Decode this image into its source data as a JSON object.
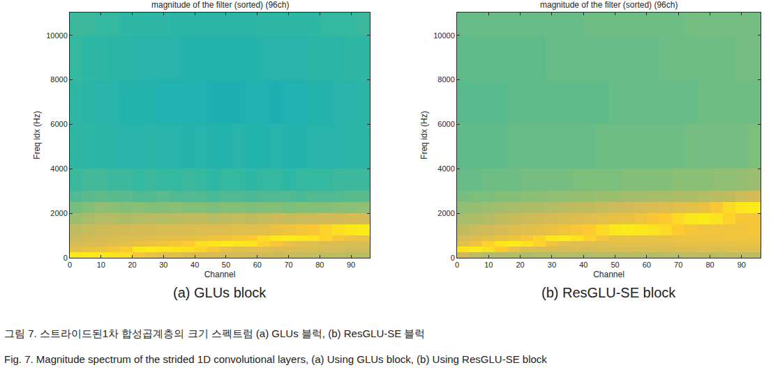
{
  "chart_data": [
    {
      "type": "heatmap",
      "title": "magnitude of the filter (sorted) (96ch)",
      "x_label": "Channel",
      "y_label": "Freq idx (Hz)",
      "annotations": [
        "(a) GLUs block"
      ],
      "xlim": [
        0,
        96
      ],
      "ylim": [
        0,
        11025
      ],
      "xticks": [
        0,
        10,
        20,
        30,
        40,
        50,
        60,
        70,
        80,
        90
      ],
      "yticks": [
        0,
        2000,
        4000,
        6000,
        8000,
        10000
      ],
      "zlim": [
        0,
        1
      ],
      "x": [
        0,
        4,
        8,
        12,
        16,
        20,
        24,
        28,
        32,
        36,
        40,
        44,
        48,
        52,
        56,
        60,
        64,
        68,
        72,
        76,
        80,
        84,
        88,
        92,
        96
      ],
      "y": [
        0,
        250,
        500,
        750,
        1000,
        1500,
        2000,
        2500,
        3000,
        4000,
        6000,
        8000,
        10000,
        11025
      ],
      "cells": [
        [
          0.95,
          0.96,
          0.95,
          0.94,
          0.93,
          0.85,
          0.82,
          0.8,
          0.8,
          0.78,
          0.78,
          0.77,
          0.76,
          0.76,
          0.75,
          0.75,
          0.74,
          0.74,
          0.73,
          0.73,
          0.72,
          0.72,
          0.71,
          0.71
        ],
        [
          0.8,
          0.82,
          0.83,
          0.85,
          0.88,
          0.95,
          0.96,
          0.95,
          0.94,
          0.93,
          0.9,
          0.86,
          0.82,
          0.8,
          0.8,
          0.79,
          0.78,
          0.78,
          0.77,
          0.77,
          0.76,
          0.76,
          0.75,
          0.75
        ],
        [
          0.76,
          0.77,
          0.78,
          0.79,
          0.8,
          0.82,
          0.83,
          0.84,
          0.86,
          0.88,
          0.93,
          0.95,
          0.96,
          0.95,
          0.94,
          0.9,
          0.86,
          0.82,
          0.8,
          0.79,
          0.78,
          0.78,
          0.77,
          0.77
        ],
        [
          0.74,
          0.75,
          0.76,
          0.77,
          0.78,
          0.78,
          0.79,
          0.8,
          0.8,
          0.81,
          0.82,
          0.83,
          0.84,
          0.86,
          0.88,
          0.92,
          0.95,
          0.96,
          0.95,
          0.94,
          0.9,
          0.86,
          0.83,
          0.82
        ],
        [
          0.72,
          0.73,
          0.74,
          0.75,
          0.75,
          0.76,
          0.76,
          0.77,
          0.77,
          0.77,
          0.78,
          0.78,
          0.78,
          0.79,
          0.79,
          0.8,
          0.82,
          0.83,
          0.85,
          0.87,
          0.9,
          0.93,
          0.95,
          0.96
        ],
        [
          0.66,
          0.68,
          0.7,
          0.7,
          0.69,
          0.7,
          0.71,
          0.7,
          0.71,
          0.72,
          0.72,
          0.71,
          0.72,
          0.73,
          0.72,
          0.73,
          0.74,
          0.73,
          0.74,
          0.74,
          0.75,
          0.75,
          0.76,
          0.76
        ],
        [
          0.6,
          0.62,
          0.64,
          0.63,
          0.62,
          0.63,
          0.62,
          0.62,
          0.63,
          0.62,
          0.62,
          0.61,
          0.62,
          0.62,
          0.61,
          0.62,
          0.62,
          0.61,
          0.62,
          0.62,
          0.62,
          0.63,
          0.63,
          0.64
        ],
        [
          0.55,
          0.56,
          0.57,
          0.56,
          0.56,
          0.55,
          0.55,
          0.56,
          0.55,
          0.55,
          0.55,
          0.54,
          0.55,
          0.55,
          0.54,
          0.55,
          0.55,
          0.55,
          0.54,
          0.55,
          0.55,
          0.55,
          0.56,
          0.56
        ],
        [
          0.52,
          0.53,
          0.53,
          0.52,
          0.52,
          0.51,
          0.52,
          0.51,
          0.51,
          0.52,
          0.51,
          0.5,
          0.51,
          0.51,
          0.5,
          0.51,
          0.51,
          0.5,
          0.51,
          0.51,
          0.51,
          0.52,
          0.52,
          0.52
        ],
        [
          0.5,
          0.5,
          0.49,
          0.49,
          0.48,
          0.48,
          0.49,
          0.48,
          0.48,
          0.47,
          0.48,
          0.47,
          0.47,
          0.48,
          0.47,
          0.47,
          0.48,
          0.47,
          0.47,
          0.48,
          0.48,
          0.48,
          0.49,
          0.49
        ],
        [
          0.5,
          0.49,
          0.48,
          0.48,
          0.47,
          0.47,
          0.47,
          0.46,
          0.46,
          0.46,
          0.46,
          0.45,
          0.45,
          0.45,
          0.46,
          0.46,
          0.45,
          0.46,
          0.46,
          0.47,
          0.47,
          0.48,
          0.48,
          0.49
        ],
        [
          0.51,
          0.5,
          0.5,
          0.49,
          0.49,
          0.48,
          0.48,
          0.48,
          0.48,
          0.47,
          0.47,
          0.47,
          0.47,
          0.47,
          0.47,
          0.48,
          0.48,
          0.48,
          0.48,
          0.49,
          0.49,
          0.49,
          0.5,
          0.5
        ],
        [
          0.52,
          0.52,
          0.51,
          0.51,
          0.5,
          0.5,
          0.5,
          0.5,
          0.49,
          0.49,
          0.49,
          0.49,
          0.49,
          0.49,
          0.49,
          0.5,
          0.5,
          0.5,
          0.5,
          0.5,
          0.51,
          0.51,
          0.51,
          0.52
        ]
      ]
    },
    {
      "type": "heatmap",
      "title": "magnitude of the filter (sorted) (96ch)",
      "x_label": "Channel",
      "y_label": "Freq idx (Hz)",
      "annotations": [
        "(b) ResGLU-SE block"
      ],
      "xlim": [
        0,
        96
      ],
      "ylim": [
        0,
        11025
      ],
      "xticks": [
        0,
        10,
        20,
        30,
        40,
        50,
        60,
        70,
        80,
        90
      ],
      "yticks": [
        0,
        2000,
        4000,
        6000,
        8000,
        10000
      ],
      "zlim": [
        0,
        1
      ],
      "x": [
        0,
        4,
        8,
        12,
        16,
        20,
        24,
        28,
        32,
        36,
        40,
        44,
        48,
        52,
        56,
        60,
        64,
        68,
        72,
        76,
        80,
        84,
        88,
        92,
        96
      ],
      "y": [
        0,
        250,
        500,
        750,
        1000,
        1500,
        2000,
        2500,
        3000,
        4000,
        6000,
        8000,
        10000,
        11025
      ],
      "cells": [
        [
          0.75,
          0.72,
          0.7,
          0.7,
          0.7,
          0.69,
          0.7,
          0.7,
          0.71,
          0.7,
          0.7,
          0.71,
          0.7,
          0.71,
          0.71,
          0.7,
          0.71,
          0.71,
          0.72,
          0.72,
          0.71,
          0.72,
          0.72,
          0.72
        ],
        [
          0.95,
          0.96,
          0.93,
          0.88,
          0.82,
          0.78,
          0.77,
          0.77,
          0.76,
          0.77,
          0.76,
          0.77,
          0.77,
          0.77,
          0.77,
          0.78,
          0.78,
          0.78,
          0.78,
          0.79,
          0.78,
          0.79,
          0.79,
          0.79
        ],
        [
          0.8,
          0.84,
          0.9,
          0.95,
          0.96,
          0.94,
          0.9,
          0.84,
          0.8,
          0.79,
          0.79,
          0.79,
          0.8,
          0.8,
          0.8,
          0.8,
          0.8,
          0.81,
          0.81,
          0.81,
          0.81,
          0.81,
          0.82,
          0.82
        ],
        [
          0.76,
          0.78,
          0.8,
          0.82,
          0.84,
          0.86,
          0.9,
          0.95,
          0.96,
          0.94,
          0.9,
          0.85,
          0.82,
          0.82,
          0.82,
          0.82,
          0.82,
          0.83,
          0.83,
          0.83,
          0.83,
          0.84,
          0.84,
          0.84
        ],
        [
          0.72,
          0.74,
          0.75,
          0.76,
          0.78,
          0.79,
          0.8,
          0.82,
          0.84,
          0.86,
          0.88,
          0.92,
          0.95,
          0.96,
          0.95,
          0.94,
          0.92,
          0.88,
          0.85,
          0.84,
          0.84,
          0.84,
          0.84,
          0.85
        ],
        [
          0.68,
          0.69,
          0.7,
          0.72,
          0.73,
          0.74,
          0.75,
          0.76,
          0.77,
          0.78,
          0.79,
          0.8,
          0.81,
          0.82,
          0.84,
          0.86,
          0.88,
          0.92,
          0.95,
          0.96,
          0.94,
          0.9,
          0.86,
          0.85
        ],
        [
          0.64,
          0.65,
          0.66,
          0.67,
          0.68,
          0.69,
          0.69,
          0.7,
          0.71,
          0.72,
          0.72,
          0.73,
          0.74,
          0.75,
          0.76,
          0.77,
          0.78,
          0.79,
          0.8,
          0.82,
          0.86,
          0.92,
          0.95,
          0.96
        ],
        [
          0.6,
          0.61,
          0.61,
          0.62,
          0.62,
          0.63,
          0.63,
          0.64,
          0.64,
          0.65,
          0.65,
          0.66,
          0.66,
          0.67,
          0.67,
          0.68,
          0.68,
          0.69,
          0.69,
          0.7,
          0.71,
          0.72,
          0.74,
          0.76
        ],
        [
          0.58,
          0.58,
          0.59,
          0.59,
          0.59,
          0.6,
          0.6,
          0.6,
          0.6,
          0.61,
          0.61,
          0.61,
          0.61,
          0.62,
          0.62,
          0.62,
          0.62,
          0.63,
          0.63,
          0.63,
          0.64,
          0.64,
          0.65,
          0.66
        ],
        [
          0.57,
          0.57,
          0.57,
          0.57,
          0.58,
          0.58,
          0.58,
          0.58,
          0.58,
          0.58,
          0.58,
          0.59,
          0.59,
          0.59,
          0.59,
          0.59,
          0.59,
          0.59,
          0.6,
          0.6,
          0.6,
          0.6,
          0.6,
          0.61
        ],
        [
          0.56,
          0.56,
          0.56,
          0.56,
          0.57,
          0.57,
          0.57,
          0.57,
          0.57,
          0.57,
          0.57,
          0.57,
          0.58,
          0.58,
          0.58,
          0.58,
          0.58,
          0.58,
          0.58,
          0.59,
          0.59,
          0.59,
          0.59,
          0.59
        ],
        [
          0.57,
          0.57,
          0.57,
          0.57,
          0.57,
          0.57,
          0.57,
          0.58,
          0.58,
          0.58,
          0.58,
          0.58,
          0.58,
          0.58,
          0.58,
          0.58,
          0.59,
          0.59,
          0.59,
          0.59,
          0.59,
          0.59,
          0.6,
          0.6
        ],
        [
          0.58,
          0.58,
          0.58,
          0.58,
          0.58,
          0.58,
          0.58,
          0.58,
          0.58,
          0.58,
          0.59,
          0.59,
          0.59,
          0.59,
          0.59,
          0.59,
          0.59,
          0.59,
          0.6,
          0.6,
          0.6,
          0.6,
          0.6,
          0.6
        ]
      ]
    }
  ],
  "figure_caption": [
    "그림 7. 스트라이드된1차 합성곱계층의 크기 스펙트럼 (a) GLUs 블럭, (b) ResGLU-SE 블럭",
    "Fig. 7. Magnitude spectrum of the strided 1D convolutional layers, (a) Using GLUs block, (b) Using ResGLU-SE block"
  ]
}
